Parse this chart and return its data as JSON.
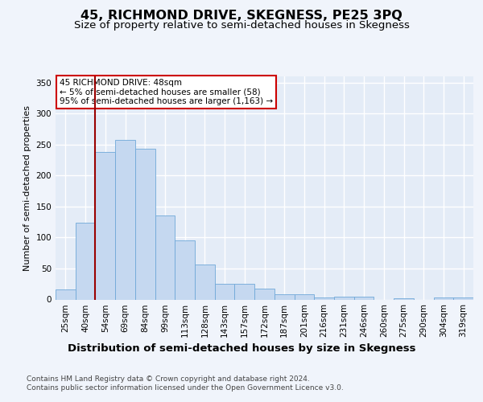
{
  "title": "45, RICHMOND DRIVE, SKEGNESS, PE25 3PQ",
  "subtitle": "Size of property relative to semi-detached houses in Skegness",
  "xlabel": "Distribution of semi-detached houses by size in Skegness",
  "ylabel": "Number of semi-detached properties",
  "categories": [
    "25sqm",
    "40sqm",
    "54sqm",
    "69sqm",
    "84sqm",
    "99sqm",
    "113sqm",
    "128sqm",
    "143sqm",
    "157sqm",
    "172sqm",
    "187sqm",
    "201sqm",
    "216sqm",
    "231sqm",
    "246sqm",
    "260sqm",
    "275sqm",
    "290sqm",
    "304sqm",
    "319sqm"
  ],
  "values": [
    16,
    124,
    238,
    257,
    243,
    135,
    95,
    56,
    25,
    25,
    18,
    9,
    9,
    3,
    5,
    5,
    0,
    2,
    0,
    3,
    3
  ],
  "bar_color": "#c5d8f0",
  "bar_edge_color": "#6fa8d8",
  "property_line_x": 1.5,
  "property_line_color": "#990000",
  "annotation_text": "45 RICHMOND DRIVE: 48sqm\n← 5% of semi-detached houses are smaller (58)\n95% of semi-detached houses are larger (1,163) →",
  "annotation_box_color": "#ffffff",
  "annotation_box_edge": "#cc0000",
  "background_color": "#f0f4fb",
  "plot_bg_color": "#e4ecf7",
  "grid_color": "#ffffff",
  "footer_text": "Contains HM Land Registry data © Crown copyright and database right 2024.\nContains public sector information licensed under the Open Government Licence v3.0.",
  "ylim": [
    0,
    360
  ],
  "yticks": [
    0,
    50,
    100,
    150,
    200,
    250,
    300,
    350
  ],
  "title_fontsize": 11.5,
  "subtitle_fontsize": 9.5,
  "xlabel_fontsize": 9.5,
  "ylabel_fontsize": 8,
  "tick_fontsize": 7.5,
  "annotation_fontsize": 7.5,
  "footer_fontsize": 6.5
}
